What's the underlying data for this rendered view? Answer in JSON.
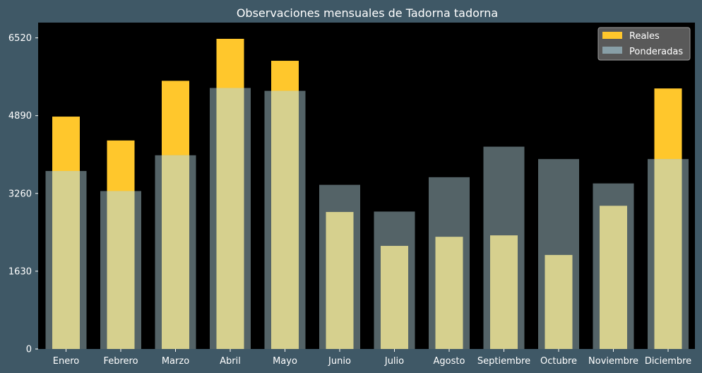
{
  "chart_data": {
    "type": "bar",
    "title": "Observaciones mensuales de Tadorna tadorna",
    "xlabel": "",
    "ylabel": "",
    "categories": [
      "Enero",
      "Febrero",
      "Marzo",
      "Abril",
      "Mayo",
      "Junio",
      "Julio",
      "Agosto",
      "Septiembre",
      "Octubre",
      "Noviembre",
      "Diciembre"
    ],
    "series": [
      {
        "name": "Reales",
        "values": [
          4870,
          4370,
          5620,
          6500,
          6040,
          2870,
          2160,
          2350,
          2380,
          1970,
          3000,
          5460
        ]
      },
      {
        "name": "Ponderadas",
        "values": [
          3730,
          3310,
          4060,
          5470,
          5410,
          3440,
          2880,
          3600,
          4240,
          3980,
          3470,
          3980
        ]
      }
    ],
    "yticks": [
      0,
      1630,
      3260,
      4890,
      6520
    ],
    "ylim": [
      0,
      6840
    ],
    "grid": false,
    "legend_position": "top-right",
    "colors": {
      "page_background": "#3f5866",
      "plot_background": "#000000",
      "Reales": "#ffc72c",
      "Ponderadas": "#889fa7",
      "overlap": "#d6d08e",
      "legend_background": "#595959",
      "text": "#ffffff"
    }
  }
}
